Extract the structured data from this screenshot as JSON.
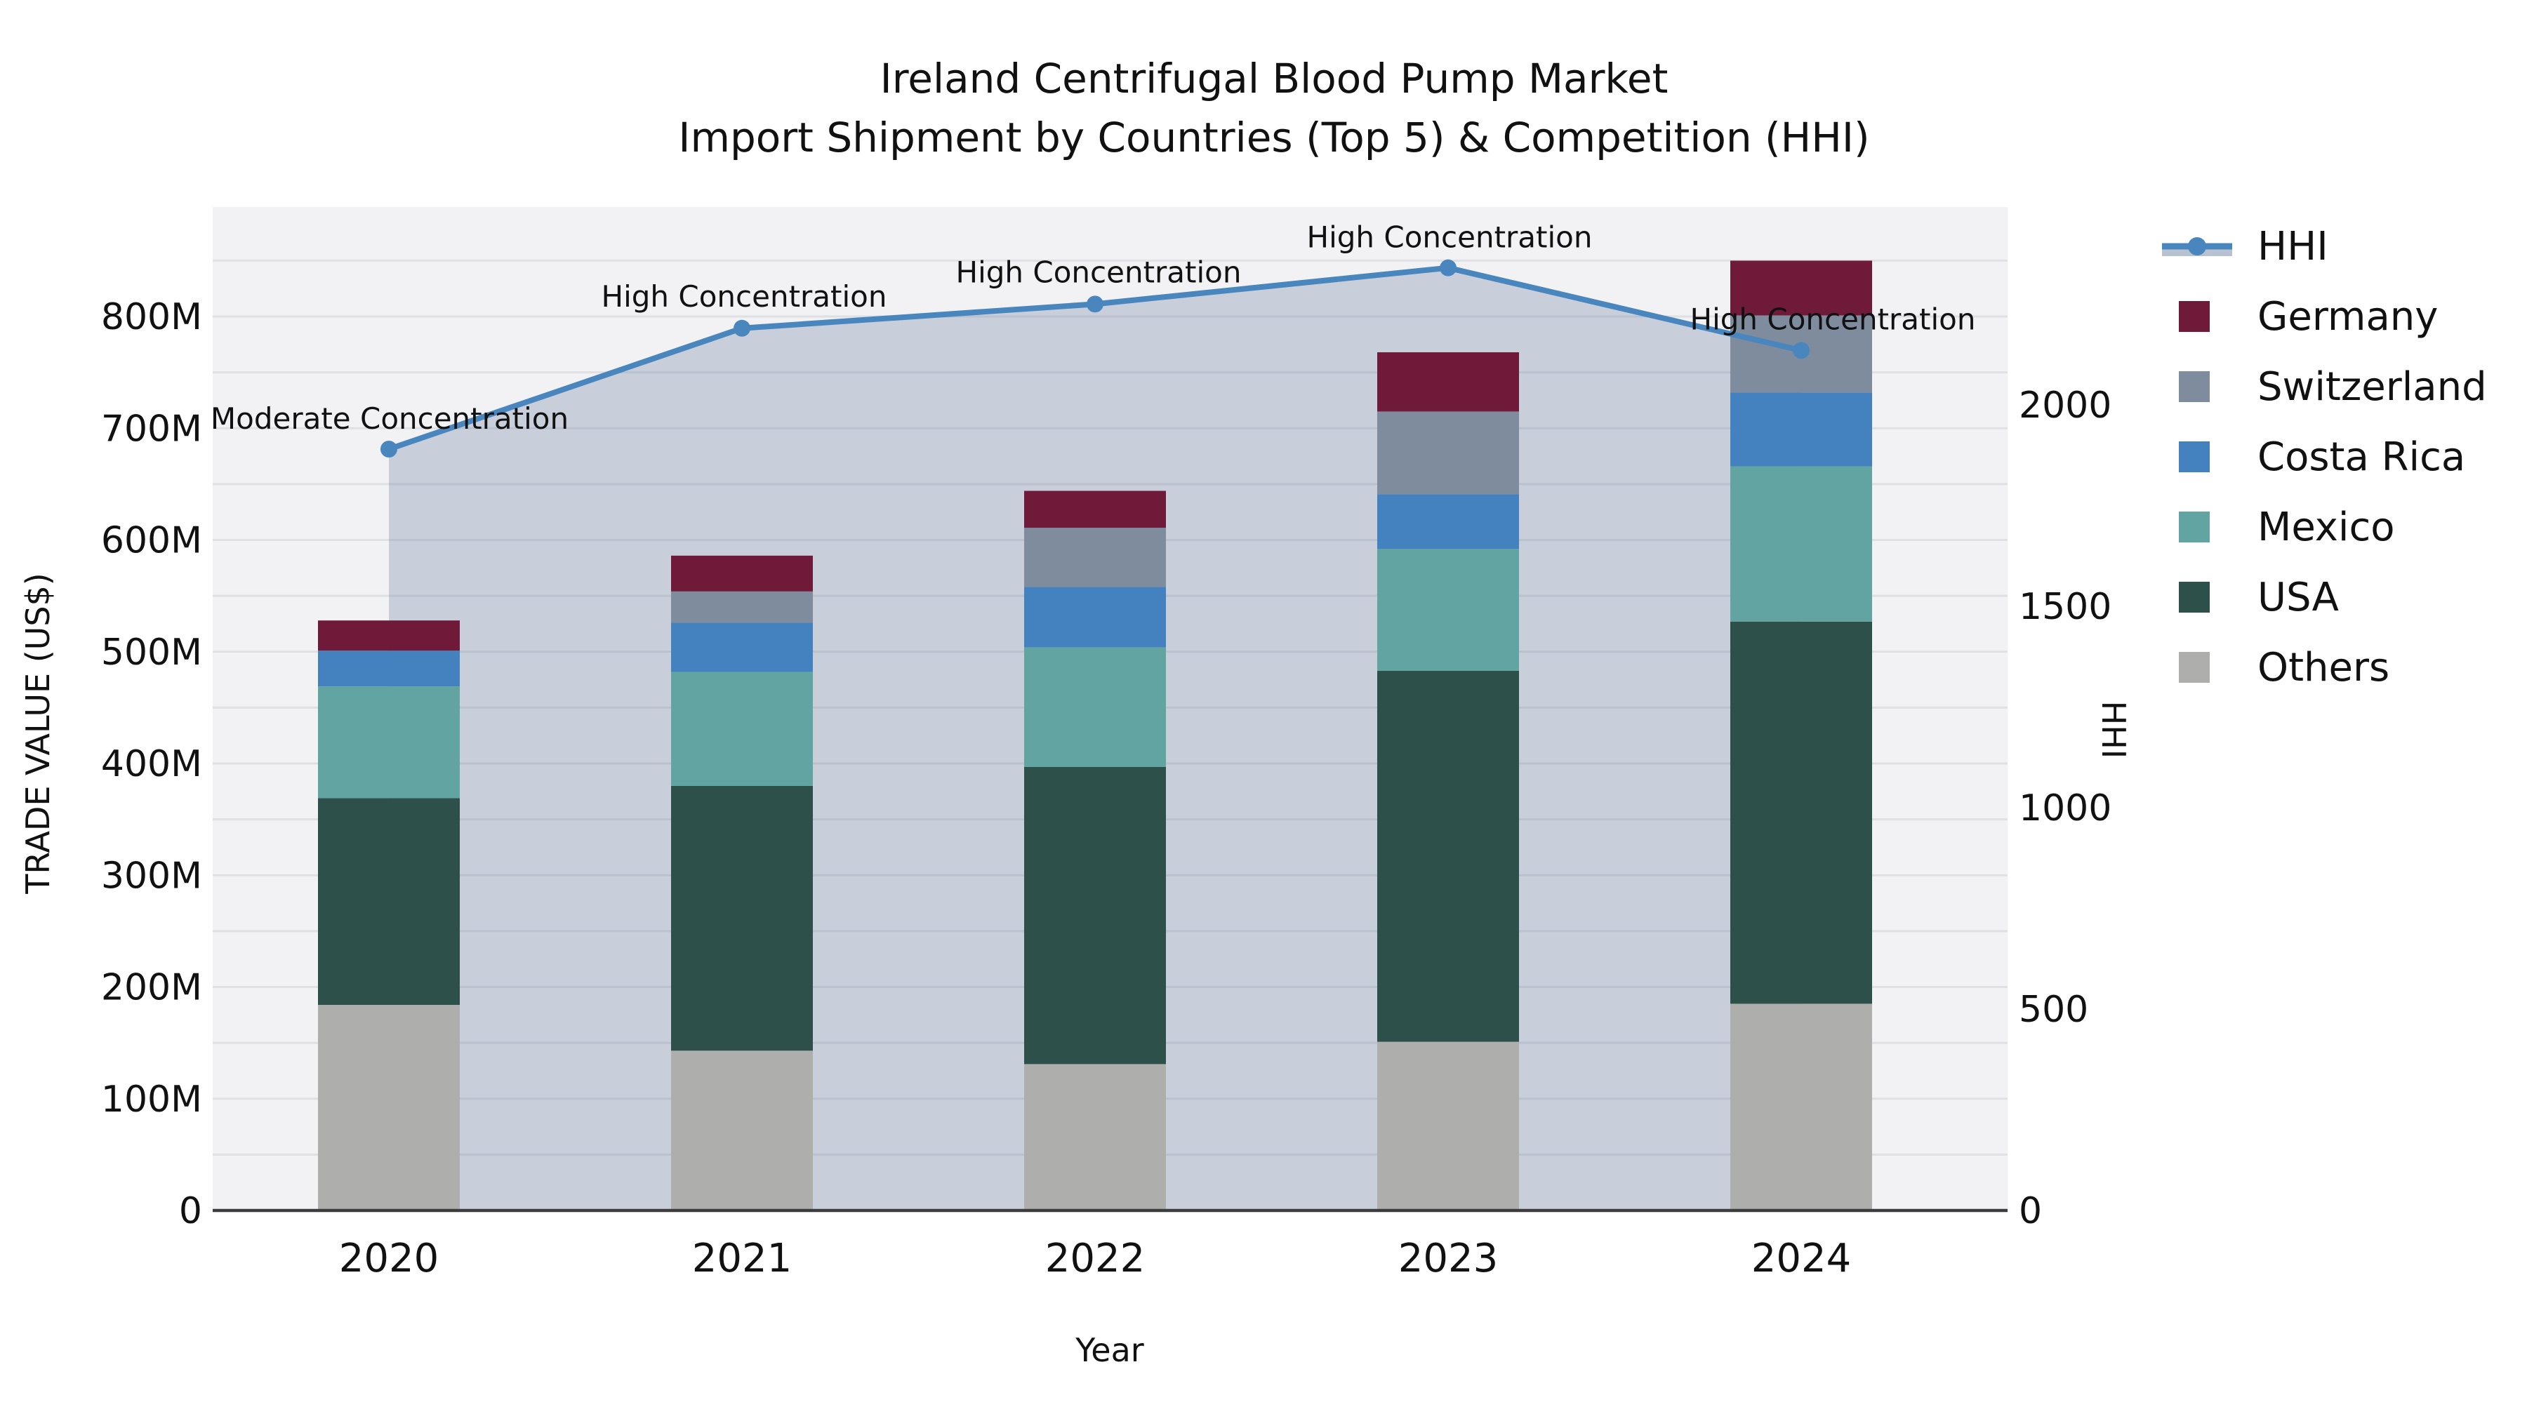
{
  "title": {
    "line1": "Ireland Centrifugal Blood Pump Market",
    "line2": "Import Shipment by Countries (Top 5) & Competition (HHI)"
  },
  "chart_data": {
    "type": "bar+line",
    "categories": [
      "2020",
      "2021",
      "2022",
      "2023",
      "2024"
    ],
    "series": [
      {
        "name": "Others",
        "color": "#aeaeac",
        "values": [
          184,
          143,
          131,
          151,
          185
        ]
      },
      {
        "name": "USA",
        "color": "#2d504b",
        "values": [
          185,
          237,
          266,
          332,
          342
        ]
      },
      {
        "name": "Mexico",
        "color": "#61a4a1",
        "values": [
          100,
          102,
          107,
          109,
          139
        ]
      },
      {
        "name": "Costa Rica",
        "color": "#4381bf",
        "values": [
          32,
          44,
          54,
          49,
          66
        ]
      },
      {
        "name": "Switzerland",
        "color": "#7e8c9e",
        "values": [
          0,
          28,
          53,
          74,
          69
        ]
      },
      {
        "name": "Germany",
        "color": "#701a3a",
        "values": [
          27,
          32,
          33,
          53,
          49
        ]
      }
    ],
    "totals": [
      528,
      586,
      644,
      768,
      850
    ],
    "line": {
      "name": "HHI",
      "color": "#4a86be",
      "area_fill": "rgba(175,186,202,0.62)",
      "values": [
        1890,
        2190,
        2250,
        2340,
        2135
      ]
    },
    "annotations": [
      {
        "year": "2020",
        "label": "Moderate Concentration"
      },
      {
        "year": "2021",
        "label": "High Concentration"
      },
      {
        "year": "2022",
        "label": "High Concentration"
      },
      {
        "year": "2023",
        "label": "High Concentration"
      },
      {
        "year": "2024",
        "label": "High Concentration"
      }
    ],
    "xlabel": "Year",
    "ylabel": "TRADE VALUE (US$)",
    "y2label": "HHI",
    "yticks": [
      "0",
      "100M",
      "200M",
      "300M",
      "400M",
      "500M",
      "600M",
      "700M",
      "800M"
    ],
    "y2ticks": [
      "0",
      "500",
      "1000",
      "1500",
      "2000"
    ],
    "ylim": [
      0,
      898
    ],
    "y2lim": [
      0,
      2491
    ],
    "grid": "on",
    "legend_order": [
      "HHI",
      "Germany",
      "Switzerland",
      "Costa Rica",
      "Mexico",
      "USA",
      "Others"
    ],
    "legend_position": "right"
  }
}
